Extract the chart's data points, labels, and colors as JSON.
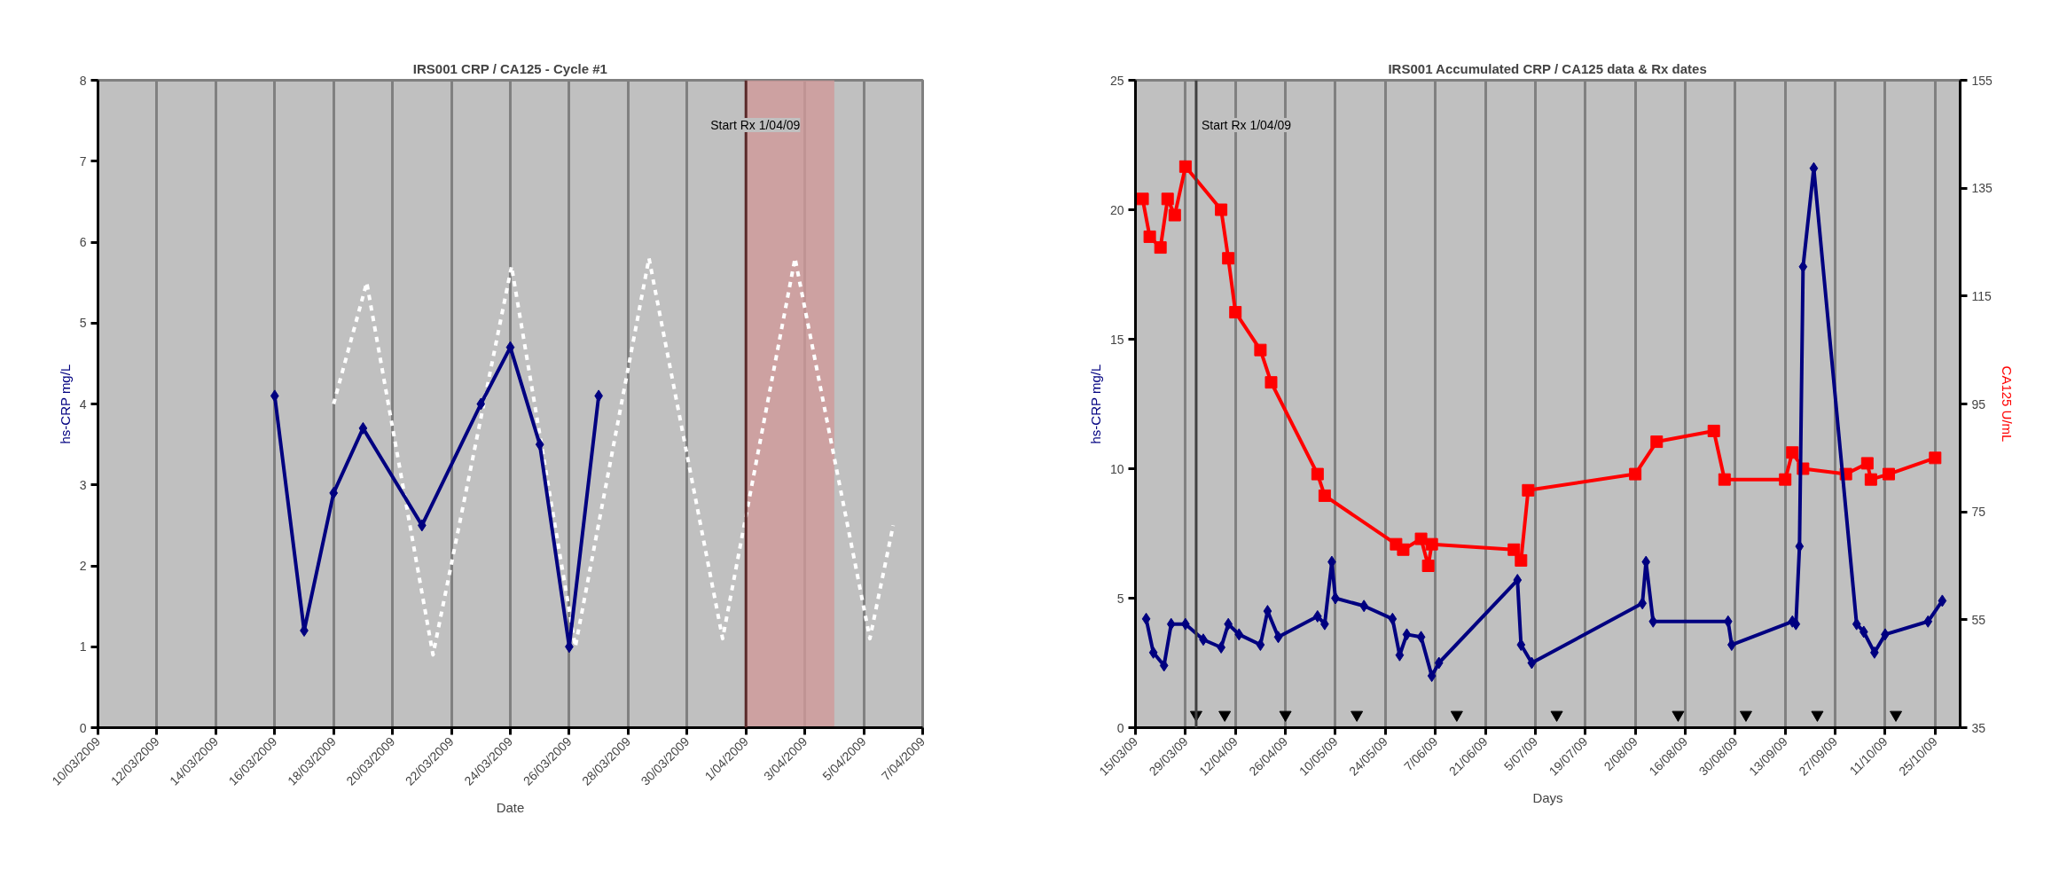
{
  "chart_data": [
    {
      "type": "line",
      "title": "IRS001 CRP / CA125 - Cycle #1",
      "xlabel": "Date",
      "ylabel": "hs-CRP mg/L",
      "xlim": [
        "2009-03-10",
        "2009-04-07"
      ],
      "xticks": [
        {
          "value": "2009-03-10",
          "label": "10/03/2009"
        },
        {
          "value": "2009-03-12",
          "label": "12/03/2009"
        },
        {
          "value": "2009-03-14",
          "label": "14/03/2009"
        },
        {
          "value": "2009-03-16",
          "label": "16/03/2009"
        },
        {
          "value": "2009-03-18",
          "label": "18/03/2009"
        },
        {
          "value": "2009-03-20",
          "label": "20/03/2009"
        },
        {
          "value": "2009-03-22",
          "label": "22/03/2009"
        },
        {
          "value": "2009-03-24",
          "label": "24/03/2009"
        },
        {
          "value": "2009-03-26",
          "label": "26/03/2009"
        },
        {
          "value": "2009-03-28",
          "label": "28/03/2009"
        },
        {
          "value": "2009-03-30",
          "label": "30/03/2009"
        },
        {
          "value": "2009-04-01",
          "label": "1/04/2009"
        },
        {
          "value": "2009-04-03",
          "label": "3/04/2009"
        },
        {
          "value": "2009-04-05",
          "label": "5/04/2009"
        },
        {
          "value": "2009-04-07",
          "label": "7/04/2009"
        }
      ],
      "ylim": [
        0,
        8
      ],
      "yticks": [
        0,
        1,
        2,
        3,
        4,
        5,
        6,
        7,
        8
      ],
      "grid": "x",
      "series": [
        {
          "color": "#ffffff",
          "line_style": "dashed",
          "marker": "none",
          "x": [
            "2009-03-18",
            "2009-03-19T03:00",
            "2009-03-21T09:00",
            "2009-03-24T01:00",
            "2009-03-26T05:00",
            "2009-03-28T17:00",
            "2009-03-31T05:00",
            "2009-04-02T16:00",
            "2009-04-05T05:00",
            "2009-04-06"
          ],
          "values": [
            4.0,
            5.5,
            0.9,
            5.7,
            1.0,
            5.8,
            1.1,
            5.8,
            1.1,
            2.5
          ]
        },
        {
          "color": "#000080",
          "line_style": "solid",
          "marker": "diamond",
          "x": [
            "2009-03-16",
            "2009-03-17",
            "2009-03-18",
            "2009-03-19",
            "2009-03-21",
            "2009-03-23",
            "2009-03-24",
            "2009-03-25",
            "2009-03-26",
            "2009-03-27"
          ],
          "values": [
            4.1,
            1.2,
            2.9,
            3.7,
            2.5,
            4.0,
            4.7,
            3.5,
            1.0,
            4.1
          ]
        }
      ],
      "ref_lines": [
        {
          "axis": "x",
          "value": "2009-04-01",
          "label": "Start Rx 1/04/09",
          "color": "#5a2a2a"
        }
      ],
      "bands": [
        {
          "axis": "x",
          "from": "2009-04-01",
          "to": "2009-04-04",
          "color": "#d09898"
        }
      ]
    },
    {
      "type": "line",
      "title": "IRS001 Accumulated CRP / CA125 data & Rx dates",
      "xlabel": "Days",
      "ylabel": "hs-CRP mg/L",
      "y2label": "CA125 U/mL",
      "xlim": [
        "2009-03-15",
        "2009-11-01"
      ],
      "xticks": [
        {
          "value": "2009-03-15",
          "label": "15/03/09"
        },
        {
          "value": "2009-03-29",
          "label": "29/03/09"
        },
        {
          "value": "2009-04-12",
          "label": "12/04/09"
        },
        {
          "value": "2009-04-26",
          "label": "26/04/09"
        },
        {
          "value": "2009-05-10",
          "label": "10/05/09"
        },
        {
          "value": "2009-05-24",
          "label": "24/05/09"
        },
        {
          "value": "2009-06-07",
          "label": "7/06/09"
        },
        {
          "value": "2009-06-21",
          "label": "21/06/09"
        },
        {
          "value": "2009-07-05",
          "label": "5/07/09"
        },
        {
          "value": "2009-07-19",
          "label": "19/07/09"
        },
        {
          "value": "2009-08-02",
          "label": "2/08/09"
        },
        {
          "value": "2009-08-16",
          "label": "16/08/09"
        },
        {
          "value": "2009-08-30",
          "label": "30/08/09"
        },
        {
          "value": "2009-09-13",
          "label": "13/09/09"
        },
        {
          "value": "2009-09-27",
          "label": "27/09/09"
        },
        {
          "value": "2009-10-11",
          "label": "11/10/09"
        },
        {
          "value": "2009-10-25",
          "label": "25/10/09"
        }
      ],
      "ylim": [
        0,
        25
      ],
      "yticks": [
        0,
        5,
        10,
        15,
        20,
        25
      ],
      "y2lim": [
        35,
        155
      ],
      "y2ticks": [
        35,
        55,
        75,
        95,
        115,
        135,
        155
      ],
      "grid": "x",
      "series": [
        {
          "color": "#ff0000",
          "axis": "y2",
          "line_style": "solid",
          "marker": "square",
          "x": [
            "2009-03-17",
            "2009-03-19",
            "2009-03-22",
            "2009-03-24",
            "2009-03-26",
            "2009-03-29",
            "2009-04-08",
            "2009-04-10",
            "2009-04-12",
            "2009-04-19",
            "2009-04-22",
            "2009-05-05",
            "2009-05-07",
            "2009-05-27",
            "2009-05-29",
            "2009-06-03",
            "2009-06-05",
            "2009-06-06",
            "2009-06-29",
            "2009-07-01",
            "2009-07-03",
            "2009-08-02",
            "2009-08-08",
            "2009-08-24",
            "2009-08-27",
            "2009-09-13",
            "2009-09-15",
            "2009-09-18",
            "2009-09-30",
            "2009-10-06",
            "2009-10-07",
            "2009-10-12",
            "2009-10-25"
          ],
          "values": [
            133,
            126,
            124,
            133,
            130,
            139,
            131,
            122,
            112,
            105,
            99,
            82,
            78,
            69,
            68,
            70,
            65,
            69,
            68,
            66,
            79,
            82,
            88,
            90,
            81,
            81,
            86,
            83,
            82,
            84,
            81,
            82,
            85
          ]
        },
        {
          "color": "#000080",
          "line_style": "solid",
          "marker": "diamond",
          "x": [
            "2009-03-18",
            "2009-03-20",
            "2009-03-23",
            "2009-03-25",
            "2009-03-29",
            "2009-04-03",
            "2009-04-08",
            "2009-04-10",
            "2009-04-13",
            "2009-04-19",
            "2009-04-21",
            "2009-04-24",
            "2009-05-05",
            "2009-05-07",
            "2009-05-09",
            "2009-05-10",
            "2009-05-18",
            "2009-05-26",
            "2009-05-28",
            "2009-05-30",
            "2009-06-03",
            "2009-06-06",
            "2009-06-08",
            "2009-06-30",
            "2009-07-01",
            "2009-07-04",
            "2009-08-04",
            "2009-08-05",
            "2009-08-07",
            "2009-08-28",
            "2009-08-29",
            "2009-09-15",
            "2009-09-16",
            "2009-09-17",
            "2009-09-18",
            "2009-09-21",
            "2009-10-03",
            "2009-10-05",
            "2009-10-08",
            "2009-10-11",
            "2009-10-23",
            "2009-10-27"
          ],
          "values": [
            4.2,
            2.9,
            2.4,
            4.0,
            4.0,
            3.4,
            3.1,
            4.0,
            3.6,
            3.2,
            4.5,
            3.5,
            4.3,
            4.0,
            6.4,
            5.0,
            4.7,
            4.2,
            2.8,
            3.6,
            3.5,
            2.0,
            2.5,
            5.7,
            3.2,
            2.5,
            4.8,
            6.4,
            4.1,
            4.1,
            3.2,
            4.1,
            4.0,
            7.0,
            17.8,
            21.6,
            4.0,
            3.7,
            2.9,
            3.6,
            4.1,
            4.9
          ]
        },
        {
          "type": "scatter",
          "color": "#000000",
          "marker": "triangle",
          "x": [
            "2009-04-01",
            "2009-04-09",
            "2009-04-26",
            "2009-05-16",
            "2009-06-13",
            "2009-07-11",
            "2009-08-14",
            "2009-09-02",
            "2009-09-22",
            "2009-10-14"
          ],
          "values": [
            0.5,
            0.5,
            0.5,
            0.5,
            0.5,
            0.5,
            0.5,
            0.5,
            0.5,
            0.5
          ]
        }
      ],
      "ref_lines": [
        {
          "axis": "x",
          "value": "2009-04-01",
          "label": "Start Rx 1/04/09",
          "color": "#404040"
        }
      ]
    }
  ]
}
